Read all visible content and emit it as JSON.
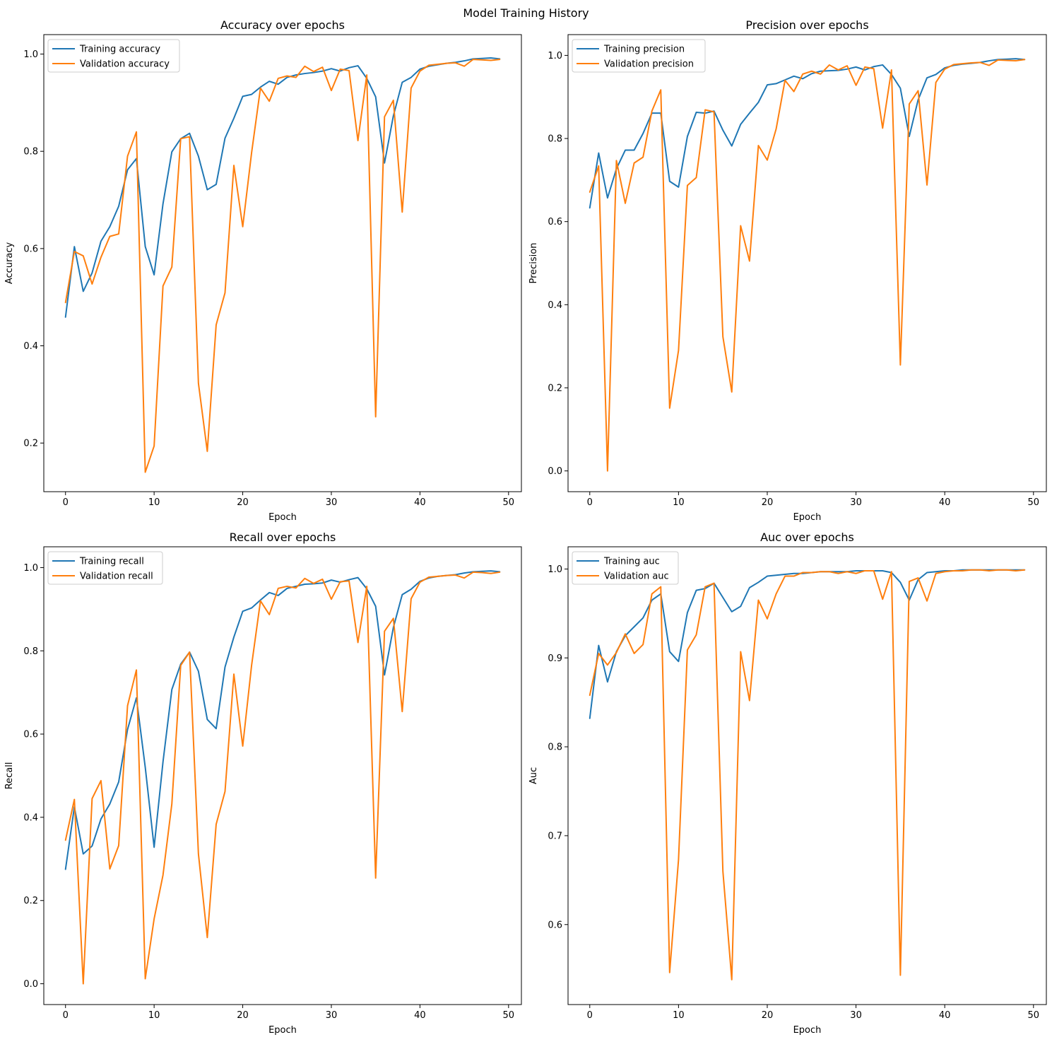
{
  "figure": {
    "suptitle": "Model Training History"
  },
  "colors": {
    "training": "#1f77b4",
    "validation": "#ff7f0e"
  },
  "chart_data": [
    {
      "type": "line",
      "title": "Accuracy over epochs",
      "xlabel": "Epoch",
      "ylabel": "Accuracy",
      "xlim": [
        -2.45,
        51.45
      ],
      "ylim": [
        0.1,
        1.04
      ],
      "xticks": [
        0,
        10,
        20,
        30,
        40,
        50
      ],
      "yticks": [
        0.2,
        0.4,
        0.6,
        0.8,
        1.0
      ],
      "ytick_labels": [
        "0.2",
        "0.4",
        "0.6",
        "0.8",
        "1.0"
      ],
      "legend": "upper-left",
      "grid": false,
      "x": [
        0,
        1,
        2,
        3,
        4,
        5,
        6,
        7,
        8,
        9,
        10,
        11,
        12,
        13,
        14,
        15,
        16,
        17,
        18,
        19,
        20,
        21,
        22,
        23,
        24,
        25,
        26,
        27,
        28,
        29,
        30,
        31,
        32,
        33,
        34,
        35,
        36,
        37,
        38,
        39,
        40,
        41,
        42,
        43,
        44,
        45,
        46,
        47,
        48,
        49
      ],
      "series": [
        {
          "name": "Training accuracy",
          "values": [
            0.459,
            0.604,
            0.512,
            0.55,
            0.615,
            0.645,
            0.687,
            0.762,
            0.785,
            0.604,
            0.546,
            0.692,
            0.799,
            0.826,
            0.837,
            0.79,
            0.721,
            0.732,
            0.827,
            0.868,
            0.913,
            0.917,
            0.932,
            0.944,
            0.938,
            0.952,
            0.957,
            0.96,
            0.962,
            0.965,
            0.97,
            0.965,
            0.972,
            0.976,
            0.95,
            0.912,
            0.776,
            0.873,
            0.942,
            0.952,
            0.969,
            0.975,
            0.978,
            0.981,
            0.983,
            0.986,
            0.99,
            0.991,
            0.992,
            0.99
          ]
        },
        {
          "name": "Validation accuracy",
          "values": [
            0.489,
            0.594,
            0.585,
            0.527,
            0.582,
            0.625,
            0.63,
            0.79,
            0.84,
            0.14,
            0.194,
            0.523,
            0.562,
            0.826,
            0.83,
            0.323,
            0.183,
            0.443,
            0.509,
            0.771,
            0.645,
            0.797,
            0.93,
            0.903,
            0.95,
            0.955,
            0.952,
            0.975,
            0.964,
            0.973,
            0.925,
            0.969,
            0.966,
            0.822,
            0.957,
            0.254,
            0.871,
            0.905,
            0.675,
            0.93,
            0.965,
            0.977,
            0.979,
            0.981,
            0.982,
            0.975,
            0.989,
            0.988,
            0.987,
            0.989
          ]
        }
      ]
    },
    {
      "type": "line",
      "title": "Precision over epochs",
      "xlabel": "Epoch",
      "ylabel": "Precision",
      "xlim": [
        -2.45,
        51.45
      ],
      "ylim": [
        -0.05,
        1.05
      ],
      "xticks": [
        0,
        10,
        20,
        30,
        40,
        50
      ],
      "yticks": [
        0.0,
        0.2,
        0.4,
        0.6,
        0.8,
        1.0
      ],
      "ytick_labels": [
        "0.0",
        "0.2",
        "0.4",
        "0.6",
        "0.8",
        "1.0"
      ],
      "legend": "upper-left",
      "grid": false,
      "x": [
        0,
        1,
        2,
        3,
        4,
        5,
        6,
        7,
        8,
        9,
        10,
        11,
        12,
        13,
        14,
        15,
        16,
        17,
        18,
        19,
        20,
        21,
        22,
        23,
        24,
        25,
        26,
        27,
        28,
        29,
        30,
        31,
        32,
        33,
        34,
        35,
        36,
        37,
        38,
        39,
        40,
        41,
        42,
        43,
        44,
        45,
        46,
        47,
        48,
        49
      ],
      "series": [
        {
          "name": "Training precision",
          "values": [
            0.633,
            0.765,
            0.657,
            0.727,
            0.772,
            0.772,
            0.812,
            0.861,
            0.861,
            0.697,
            0.683,
            0.805,
            0.863,
            0.861,
            0.866,
            0.82,
            0.782,
            0.834,
            0.861,
            0.887,
            0.929,
            0.932,
            0.941,
            0.95,
            0.944,
            0.956,
            0.962,
            0.963,
            0.964,
            0.967,
            0.972,
            0.965,
            0.973,
            0.977,
            0.954,
            0.921,
            0.805,
            0.893,
            0.946,
            0.954,
            0.97,
            0.976,
            0.979,
            0.981,
            0.983,
            0.987,
            0.99,
            0.991,
            0.992,
            0.99
          ]
        },
        {
          "name": "Validation precision",
          "values": [
            0.671,
            0.734,
            0.0,
            0.747,
            0.644,
            0.741,
            0.755,
            0.866,
            0.917,
            0.151,
            0.29,
            0.687,
            0.706,
            0.869,
            0.864,
            0.323,
            0.19,
            0.59,
            0.505,
            0.783,
            0.748,
            0.823,
            0.94,
            0.913,
            0.955,
            0.962,
            0.955,
            0.977,
            0.965,
            0.975,
            0.928,
            0.972,
            0.968,
            0.825,
            0.965,
            0.255,
            0.883,
            0.915,
            0.688,
            0.935,
            0.967,
            0.978,
            0.98,
            0.982,
            0.983,
            0.976,
            0.989,
            0.988,
            0.987,
            0.99
          ]
        }
      ]
    },
    {
      "type": "line",
      "title": "Recall over epochs",
      "xlabel": "Epoch",
      "ylabel": "Recall",
      "xlim": [
        -2.45,
        51.45
      ],
      "ylim": [
        -0.05,
        1.05
      ],
      "xticks": [
        0,
        10,
        20,
        30,
        40,
        50
      ],
      "yticks": [
        0.0,
        0.2,
        0.4,
        0.6,
        0.8,
        1.0
      ],
      "ytick_labels": [
        "0.0",
        "0.2",
        "0.4",
        "0.6",
        "0.8",
        "1.0"
      ],
      "legend": "upper-left",
      "grid": false,
      "x": [
        0,
        1,
        2,
        3,
        4,
        5,
        6,
        7,
        8,
        9,
        10,
        11,
        12,
        13,
        14,
        15,
        16,
        17,
        18,
        19,
        20,
        21,
        22,
        23,
        24,
        25,
        26,
        27,
        28,
        29,
        30,
        31,
        32,
        33,
        34,
        35,
        36,
        37,
        38,
        39,
        40,
        41,
        42,
        43,
        44,
        45,
        46,
        47,
        48,
        49
      ],
      "series": [
        {
          "name": "Training recall",
          "values": [
            0.275,
            0.425,
            0.312,
            0.331,
            0.396,
            0.432,
            0.485,
            0.611,
            0.687,
            0.52,
            0.328,
            0.533,
            0.707,
            0.768,
            0.797,
            0.751,
            0.635,
            0.613,
            0.761,
            0.833,
            0.895,
            0.903,
            0.922,
            0.94,
            0.933,
            0.95,
            0.955,
            0.96,
            0.961,
            0.963,
            0.97,
            0.965,
            0.971,
            0.976,
            0.949,
            0.907,
            0.742,
            0.856,
            0.935,
            0.948,
            0.967,
            0.975,
            0.979,
            0.981,
            0.983,
            0.987,
            0.99,
            0.991,
            0.992,
            0.99
          ]
        },
        {
          "name": "Validation recall",
          "values": [
            0.345,
            0.443,
            0.0,
            0.445,
            0.488,
            0.276,
            0.332,
            0.668,
            0.754,
            0.012,
            0.156,
            0.261,
            0.432,
            0.765,
            0.797,
            0.312,
            0.111,
            0.383,
            0.462,
            0.744,
            0.571,
            0.765,
            0.92,
            0.887,
            0.95,
            0.955,
            0.951,
            0.974,
            0.962,
            0.972,
            0.924,
            0.966,
            0.968,
            0.82,
            0.955,
            0.254,
            0.847,
            0.878,
            0.654,
            0.925,
            0.965,
            0.977,
            0.979,
            0.981,
            0.982,
            0.975,
            0.989,
            0.988,
            0.986,
            0.989
          ]
        }
      ]
    },
    {
      "type": "line",
      "title": "Auc over epochs",
      "xlabel": "Epoch",
      "ylabel": "Auc",
      "xlim": [
        -2.45,
        51.45
      ],
      "ylim": [
        0.51,
        1.025
      ],
      "xticks": [
        0,
        10,
        20,
        30,
        40,
        50
      ],
      "yticks": [
        0.6,
        0.7,
        0.8,
        0.9,
        1.0
      ],
      "ytick_labels": [
        "0.6",
        "0.7",
        "0.8",
        "0.9",
        "1.0"
      ],
      "legend": "upper-left",
      "grid": false,
      "x": [
        0,
        1,
        2,
        3,
        4,
        5,
        6,
        7,
        8,
        9,
        10,
        11,
        12,
        13,
        14,
        15,
        16,
        17,
        18,
        19,
        20,
        21,
        22,
        23,
        24,
        25,
        26,
        27,
        28,
        29,
        30,
        31,
        32,
        33,
        34,
        35,
        36,
        37,
        38,
        39,
        40,
        41,
        42,
        43,
        44,
        45,
        46,
        47,
        48,
        49
      ],
      "series": [
        {
          "name": "Training auc",
          "values": [
            0.832,
            0.914,
            0.873,
            0.907,
            0.925,
            0.935,
            0.945,
            0.965,
            0.972,
            0.907,
            0.896,
            0.951,
            0.976,
            0.978,
            0.984,
            0.968,
            0.952,
            0.958,
            0.979,
            0.985,
            0.992,
            0.993,
            0.994,
            0.995,
            0.995,
            0.996,
            0.997,
            0.997,
            0.997,
            0.997,
            0.998,
            0.998,
            0.998,
            0.998,
            0.996,
            0.985,
            0.965,
            0.988,
            0.996,
            0.997,
            0.998,
            0.998,
            0.999,
            0.999,
            0.999,
            0.999,
            0.999,
            0.999,
            0.999,
            0.999
          ]
        },
        {
          "name": "Validation auc",
          "values": [
            0.858,
            0.905,
            0.892,
            0.906,
            0.927,
            0.905,
            0.915,
            0.972,
            0.98,
            0.546,
            0.673,
            0.909,
            0.926,
            0.98,
            0.984,
            0.66,
            0.538,
            0.907,
            0.852,
            0.965,
            0.944,
            0.972,
            0.992,
            0.992,
            0.996,
            0.996,
            0.997,
            0.997,
            0.995,
            0.997,
            0.995,
            0.998,
            0.998,
            0.966,
            0.997,
            0.543,
            0.986,
            0.99,
            0.964,
            0.995,
            0.997,
            0.998,
            0.998,
            0.999,
            0.999,
            0.998,
            0.999,
            0.999,
            0.998,
            0.999
          ]
        }
      ]
    }
  ]
}
